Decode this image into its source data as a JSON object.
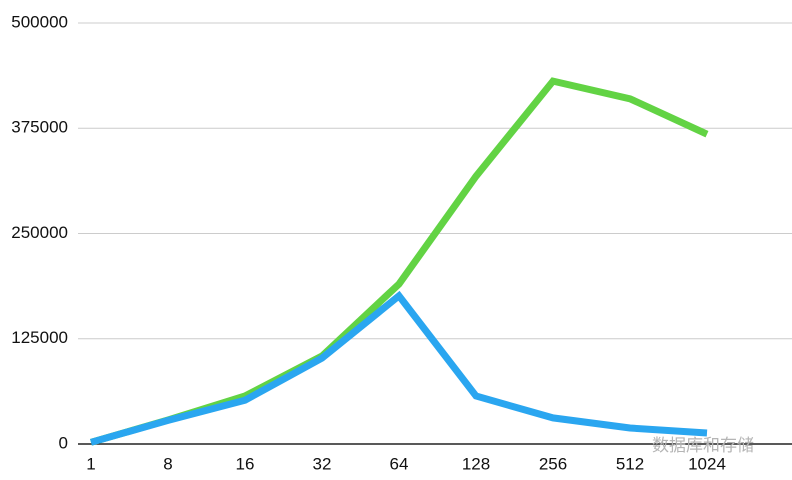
{
  "chart_data": {
    "type": "line",
    "categories": [
      "1",
      "8",
      "16",
      "32",
      "64",
      "128",
      "256",
      "512",
      "1024"
    ],
    "series": [
      {
        "color": "#62d344",
        "values": [
          2000,
          28500,
          57000,
          104500,
          190000,
          318000,
          431000,
          410000,
          368000
        ]
      },
      {
        "color": "#2aa6f0",
        "values": [
          2000,
          28000,
          52000,
          102000,
          176000,
          57000,
          31000,
          19000,
          13000
        ]
      }
    ],
    "ylim": [
      0,
      500000
    ],
    "yticks": [
      0,
      125000,
      250000,
      375000,
      500000
    ],
    "grid": true
  },
  "watermark": "数据库和存储"
}
